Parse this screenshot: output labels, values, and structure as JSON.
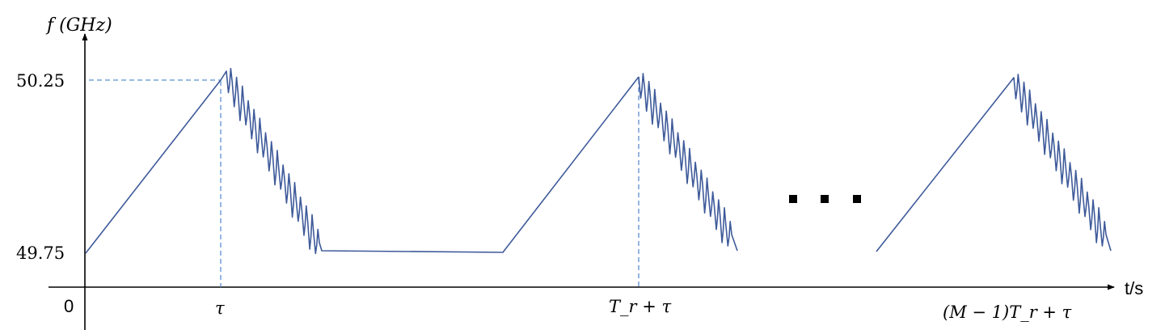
{
  "figure": {
    "y_axis_label": "f (GHz)",
    "x_axis_label": "t/s",
    "origin_label": "0",
    "y_ticks": {
      "upper": "50.25",
      "lower": "49.75"
    },
    "x_ticks": {
      "first": "τ",
      "second": "T_r + τ",
      "third": "(M − 1)T_r + τ"
    },
    "ellipsis": "■ ■ ■",
    "colors": {
      "signal": "#3e5a9a",
      "guide": "#5b8fd0",
      "axis": "#000000"
    }
  }
}
